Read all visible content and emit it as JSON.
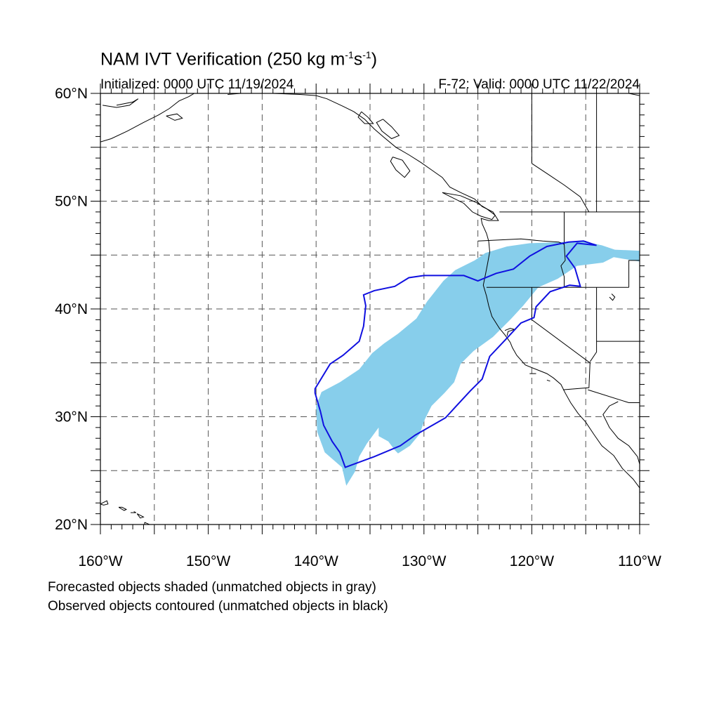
{
  "title": {
    "main": "NAM IVT Verification (250 kg m",
    "sup1": "-1",
    "mid": "s",
    "sup2": "-1",
    "end": ")"
  },
  "initialized": "Initialized: 0000 UTC 11/19/2024",
  "valid": "F-72: Valid: 0000 UTC 11/22/2024",
  "axes": {
    "lat_ticks": [
      {
        "value": 60,
        "label": "60°N"
      },
      {
        "value": 50,
        "label": "50°N"
      },
      {
        "value": 40,
        "label": "40°N"
      },
      {
        "value": 30,
        "label": "30°N"
      },
      {
        "value": 20,
        "label": "20°N"
      }
    ],
    "lon_ticks": [
      {
        "value": -160,
        "label": "160°W"
      },
      {
        "value": -150,
        "label": "150°W"
      },
      {
        "value": -140,
        "label": "140°W"
      },
      {
        "value": -130,
        "label": "130°W"
      },
      {
        "value": -120,
        "label": "120°W"
      },
      {
        "value": -110,
        "label": "110°W"
      }
    ],
    "lon_range": [
      -160,
      -110
    ],
    "lat_range": [
      20,
      60
    ],
    "grid": "dashed every 5 degrees"
  },
  "colors": {
    "forecast_fill": "#87ceeb",
    "observed_contour": "#1010e0",
    "coastline": "#000000",
    "grid": "#555555"
  },
  "forecast_object": [
    [
      -137.2,
      23.6
    ],
    [
      -137.6,
      25.3
    ],
    [
      -139.2,
      26.7
    ],
    [
      -139.9,
      28.6
    ],
    [
      -140.0,
      31.0
    ],
    [
      -139.5,
      32.3
    ],
    [
      -137.8,
      33.2
    ],
    [
      -136.0,
      34.4
    ],
    [
      -134.8,
      35.9
    ],
    [
      -133.7,
      36.8
    ],
    [
      -132.4,
      37.7
    ],
    [
      -130.7,
      39.1
    ],
    [
      -129.7,
      40.7
    ],
    [
      -128.2,
      42.6
    ],
    [
      -127.1,
      43.6
    ],
    [
      -125.3,
      44.5
    ],
    [
      -124.3,
      45.2
    ],
    [
      -122.3,
      45.8
    ],
    [
      -120.2,
      46.1
    ],
    [
      -117.2,
      46.2
    ],
    [
      -115.4,
      46.3
    ],
    [
      -113.5,
      45.9
    ],
    [
      -112.3,
      45.5
    ],
    [
      -110.0,
      45.4
    ],
    [
      -110.0,
      44.4
    ],
    [
      -112.4,
      44.8
    ],
    [
      -113.4,
      44.3
    ],
    [
      -115.8,
      44.0
    ],
    [
      -117.6,
      42.8
    ],
    [
      -119.4,
      42.0
    ],
    [
      -120.8,
      40.3
    ],
    [
      -121.9,
      39.1
    ],
    [
      -123.6,
      37.4
    ],
    [
      -125.4,
      36.1
    ],
    [
      -126.6,
      34.9
    ],
    [
      -127.2,
      33.2
    ],
    [
      -128.1,
      32.2
    ],
    [
      -129.3,
      31.0
    ],
    [
      -129.9,
      29.8
    ],
    [
      -130.4,
      28.4
    ],
    [
      -131.3,
      27.3
    ],
    [
      -132.4,
      26.6
    ],
    [
      -132.7,
      26.9
    ],
    [
      -133.3,
      27.7
    ],
    [
      -134.2,
      28.2
    ],
    [
      -134.2,
      29.0
    ],
    [
      -135.3,
      27.5
    ],
    [
      -136.0,
      26.3
    ],
    [
      -136.4,
      24.9
    ]
  ],
  "observed_object": [
    [
      -140.1,
      32.2
    ],
    [
      -139.6,
      30.5
    ],
    [
      -139.3,
      29.2
    ],
    [
      -138.5,
      27.7
    ],
    [
      -137.8,
      26.7
    ],
    [
      -137.3,
      25.3
    ],
    [
      -134.6,
      26.3
    ],
    [
      -132.2,
      27.3
    ],
    [
      -130.8,
      28.3
    ],
    [
      -128.0,
      29.9
    ],
    [
      -126.9,
      31.1
    ],
    [
      -125.7,
      32.4
    ],
    [
      -124.6,
      33.5
    ],
    [
      -123.9,
      35.6
    ],
    [
      -122.3,
      37.3
    ],
    [
      -121.0,
      38.7
    ],
    [
      -119.8,
      39.2
    ],
    [
      -119.6,
      40.2
    ],
    [
      -118.3,
      41.6
    ],
    [
      -116.5,
      42.2
    ],
    [
      -115.5,
      42.1
    ],
    [
      -116.0,
      43.8
    ],
    [
      -116.8,
      44.9
    ],
    [
      -115.8,
      46.1
    ],
    [
      -114.0,
      45.9
    ],
    [
      -115.2,
      46.3
    ],
    [
      -116.6,
      46.2
    ],
    [
      -118.6,
      45.8
    ],
    [
      -120.2,
      44.9
    ],
    [
      -121.7,
      43.7
    ],
    [
      -123.3,
      43.3
    ],
    [
      -125.0,
      42.6
    ],
    [
      -126.3,
      43.1
    ],
    [
      -128.0,
      43.1
    ],
    [
      -130.0,
      43.1
    ],
    [
      -131.4,
      42.9
    ],
    [
      -132.7,
      42.1
    ],
    [
      -134.6,
      41.7
    ],
    [
      -135.6,
      41.3
    ],
    [
      -135.4,
      40.3
    ],
    [
      -135.6,
      38.4
    ],
    [
      -136.0,
      37.0
    ],
    [
      -137.5,
      35.7
    ],
    [
      -138.7,
      34.9
    ],
    [
      -140.1,
      32.6
    ]
  ],
  "notes": {
    "line1": "Forecasted objects shaded (unmatched objects in gray)",
    "line2": "Observed objects contoured (unmatched objects in black)"
  }
}
